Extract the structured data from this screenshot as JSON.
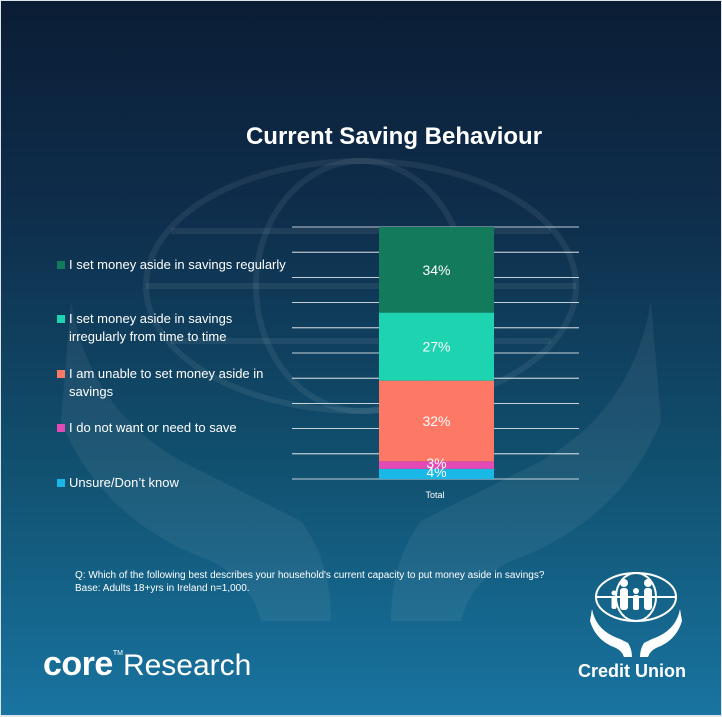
{
  "colors": {
    "regularly": "#147a5c",
    "irregularly": "#1dd3b0",
    "unable": "#fe7866",
    "not_want": "#e44ab6",
    "unsure": "#19b8e6",
    "background_top": "#0b1d35",
    "background_bottom": "#1874a0"
  },
  "chart_data": {
    "type": "bar",
    "stacked": true,
    "title": "Current Saving Behaviour",
    "categories": [
      "Total"
    ],
    "series": [
      {
        "name": "I set money aside in savings regularly",
        "values": [
          34
        ],
        "label": "34%"
      },
      {
        "name": "I set money aside in savings irregularly from time to time",
        "values": [
          27
        ],
        "label": "27%"
      },
      {
        "name": "I am unable to set money aside in savings",
        "values": [
          32
        ],
        "label": "32%"
      },
      {
        "name": "I do not want or need to save",
        "values": [
          3
        ],
        "label": "3%"
      },
      {
        "name": "Unsure/Don’t know",
        "values": [
          4
        ],
        "label": "4%"
      }
    ],
    "ylim": [
      0,
      100
    ],
    "grid": true,
    "legend_position": "left"
  },
  "legend": [
    {
      "label": "I set money aside in savings regularly",
      "color_key": "regularly"
    },
    {
      "label": "I set money aside in savings irregularly from time to time",
      "color_key": "irregularly"
    },
    {
      "label": "I am unable to set money aside in savings",
      "color_key": "unable"
    },
    {
      "label": "I do not want or need to save",
      "color_key": "not_want"
    },
    {
      "label": "Unsure/Don’t know",
      "color_key": "unsure"
    }
  ],
  "footnote": {
    "question": "Q: Which of the following best describes your household's current capacity to put money aside in savings?",
    "base": "Base: Adults 18+yrs in Ireland n=1,000."
  },
  "branding": {
    "core_bold": "core",
    "core_tm": "TM",
    "core_light": "Research",
    "credit_union": "Credit Union"
  }
}
